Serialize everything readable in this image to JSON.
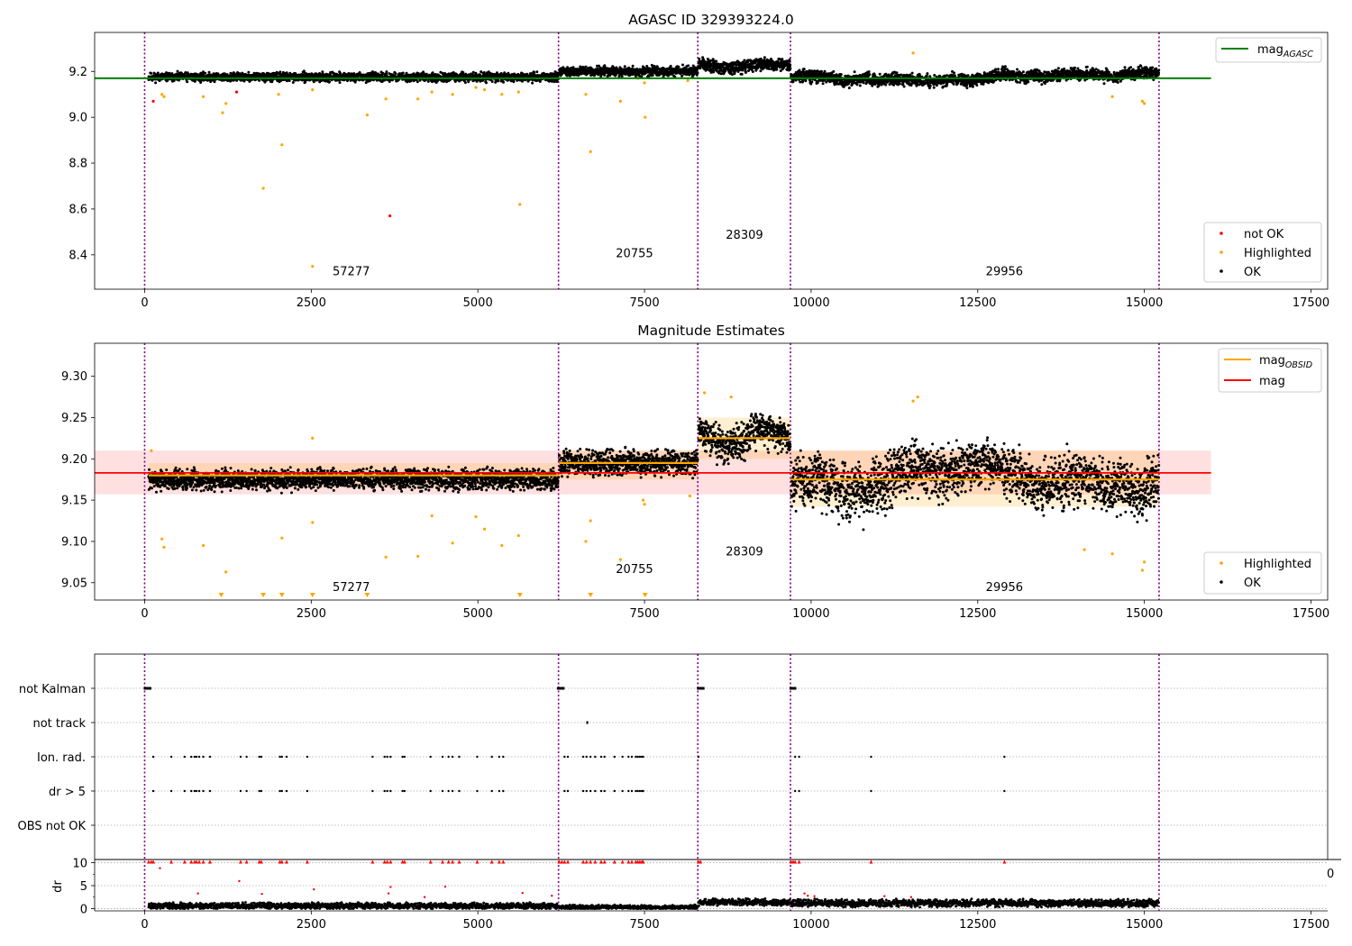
{
  "chart_data": [
    {
      "type": "scatter",
      "title": "AGASC ID 329393224.0",
      "xlim": [
        -750,
        17750
      ],
      "ylim": [
        8.25,
        9.37
      ],
      "xticks": [
        0,
        2500,
        5000,
        7500,
        10000,
        12500,
        15000,
        17500
      ],
      "yticks": [
        8.4,
        8.6,
        8.8,
        9.0,
        9.2
      ],
      "lines": [
        {
          "name": "mag_AGASC",
          "label_main": "mag",
          "label_sub": "AGASC",
          "color": "#008000",
          "y": 9.17,
          "x": [
            -750,
            16000
          ]
        }
      ],
      "obs_boundaries": [
        0,
        6210,
        8300,
        9690,
        15220
      ],
      "obsids": [
        {
          "label": "57277",
          "x": 3100,
          "y": 8.31
        },
        {
          "label": "20755",
          "x": 7350,
          "y": 8.39
        },
        {
          "label": "28309",
          "x": 9000,
          "y": 8.47
        },
        {
          "label": "29956",
          "x": 12900,
          "y": 8.31
        }
      ],
      "segments": [
        {
          "x0": 60,
          "x1": 6210,
          "base": 9.175,
          "spread": 0.018
        },
        {
          "x0": 6220,
          "x1": 8300,
          "base": 9.2,
          "spread": 0.02
        },
        {
          "x0": 8310,
          "x1": 9690,
          "base": 9.225,
          "spread": 0.025
        },
        {
          "x0": 9700,
          "x1": 15220,
          "base": 9.175,
          "spread": 0.025
        }
      ],
      "highlighted_points": [
        [
          260,
          9.1
        ],
        [
          290,
          9.09
        ],
        [
          880,
          9.09
        ],
        [
          1170,
          9.02
        ],
        [
          1220,
          9.06
        ],
        [
          1780,
          8.69
        ],
        [
          2060,
          8.88
        ],
        [
          2010,
          9.1
        ],
        [
          2520,
          9.12
        ],
        [
          2520,
          8.35
        ],
        [
          3340,
          9.01
        ],
        [
          3620,
          9.08
        ],
        [
          4100,
          9.08
        ],
        [
          4310,
          9.11
        ],
        [
          4620,
          9.1
        ],
        [
          4970,
          9.13
        ],
        [
          5100,
          9.12
        ],
        [
          5360,
          9.1
        ],
        [
          5610,
          9.11
        ],
        [
          5630,
          8.62
        ],
        [
          6690,
          8.85
        ],
        [
          6620,
          9.1
        ],
        [
          7140,
          9.07
        ],
        [
          7510,
          9.0
        ],
        [
          7400,
          9.17
        ],
        [
          7500,
          9.15
        ],
        [
          8150,
          9.16
        ],
        [
          14970,
          9.07
        ],
        [
          15000,
          9.06
        ],
        [
          14520,
          9.09
        ],
        [
          11530,
          9.28
        ]
      ],
      "not_ok_points": [
        [
          130,
          9.07
        ],
        [
          1380,
          9.11
        ],
        [
          3680,
          8.57
        ]
      ],
      "legend_points": [
        {
          "label": "not OK",
          "color": "#ff0000"
        },
        {
          "label": "Highlighted",
          "color": "#ffa500"
        },
        {
          "label": "OK",
          "color": "#000000"
        }
      ]
    },
    {
      "type": "scatter",
      "title": "Magnitude Estimates",
      "xlim": [
        -750,
        17750
      ],
      "ylim": [
        9.029,
        9.34
      ],
      "xticks": [
        0,
        2500,
        5000,
        7500,
        10000,
        12500,
        15000,
        17500
      ],
      "yticks": [
        9.05,
        9.1,
        9.15,
        9.2,
        9.25,
        9.3
      ],
      "mag": {
        "value": 9.183,
        "band": [
          9.157,
          9.21
        ],
        "x": [
          -750,
          16000
        ],
        "color": "#ff0000"
      },
      "mag_obsid": [
        {
          "x0": 60,
          "x1": 6210,
          "value": 9.18,
          "band": [
            9.165,
            9.195
          ]
        },
        {
          "x0": 6220,
          "x1": 8300,
          "value": 9.195,
          "band": [
            9.175,
            9.21
          ]
        },
        {
          "x0": 8310,
          "x1": 9690,
          "value": 9.225,
          "band": [
            9.2,
            9.25
          ]
        },
        {
          "x0": 9700,
          "x1": 15220,
          "value": 9.175,
          "band": [
            9.142,
            9.21
          ]
        }
      ],
      "obs_boundaries": [
        0,
        6210,
        8300,
        9690,
        15220
      ],
      "obsids": [
        {
          "label": "57277",
          "x": 3100,
          "y": 9.04
        },
        {
          "label": "20755",
          "x": 7350,
          "y": 9.062
        },
        {
          "label": "28309",
          "x": 9000,
          "y": 9.083
        },
        {
          "label": "29956",
          "x": 12900,
          "y": 9.04
        }
      ],
      "segments": [
        {
          "x0": 60,
          "x1": 6210,
          "base": 9.175,
          "spread": 0.012
        },
        {
          "x0": 6220,
          "x1": 8300,
          "base": 9.195,
          "spread": 0.015
        },
        {
          "x0": 8310,
          "x1": 9690,
          "base": 9.225,
          "spread": 0.02
        },
        {
          "x0": 9700,
          "x1": 15220,
          "base": 9.175,
          "spread": 0.03
        }
      ],
      "highlighted_points": [
        [
          260,
          9.103
        ],
        [
          290,
          9.093
        ],
        [
          880,
          9.095
        ],
        [
          1220,
          9.063
        ],
        [
          2060,
          9.104
        ],
        [
          2520,
          9.123
        ],
        [
          3620,
          9.081
        ],
        [
          4100,
          9.082
        ],
        [
          4310,
          9.131
        ],
        [
          4620,
          9.098
        ],
        [
          4970,
          9.13
        ],
        [
          5100,
          9.115
        ],
        [
          5360,
          9.095
        ],
        [
          5610,
          9.107
        ],
        [
          6620,
          9.1
        ],
        [
          6690,
          9.125
        ],
        [
          7140,
          9.078
        ],
        [
          7480,
          9.15
        ],
        [
          7500,
          9.145
        ],
        [
          8180,
          9.155
        ],
        [
          14970,
          9.065
        ],
        [
          15000,
          9.075
        ],
        [
          14520,
          9.085
        ],
        [
          14100,
          9.09
        ],
        [
          11530,
          9.27
        ],
        [
          11600,
          9.275
        ],
        [
          8400,
          9.28
        ],
        [
          8800,
          9.275
        ],
        [
          100,
          9.21
        ],
        [
          2520,
          9.225
        ]
      ],
      "clipped_points": [
        1150,
        1780,
        2060,
        2520,
        3340,
        5630,
        6690,
        7510
      ],
      "legend_lines": [
        {
          "label_main": "mag",
          "label_sub": "OBSID",
          "color": "#ffa500"
        },
        {
          "label_main": "mag",
          "label_sub": "",
          "color": "#ff0000"
        }
      ],
      "legend_points": [
        {
          "label": "Highlighted",
          "color": "#ffa500"
        },
        {
          "label": "OK",
          "color": "#000000"
        }
      ]
    },
    {
      "type": "scatter",
      "title": "",
      "xlim": [
        -750,
        17750
      ],
      "xticks": [
        0,
        2500,
        5000,
        7500,
        10000,
        12500,
        15000,
        17500
      ],
      "flag_rows": [
        "not Kalman",
        "not track",
        "Ion. rad.",
        "dr > 5",
        "OBS not OK"
      ],
      "obs_boundaries": [
        0,
        6210,
        8300,
        9690,
        15220
      ],
      "flags": {
        "not Kalman": [
          [
            0,
            90
          ],
          [
            6200,
            6290
          ],
          [
            8300,
            8390
          ],
          [
            9690,
            9770
          ]
        ],
        "not track": [
          [
            6640,
            6660
          ]
        ],
        "Ion. rad.": [
          130,
          400,
          600,
          700,
          750,
          780,
          820,
          880,
          980,
          1440,
          1530,
          1720,
          1750,
          2030,
          2060,
          2130,
          2440,
          3420,
          3600,
          3640,
          3690,
          3870,
          3900,
          4290,
          4470,
          4560,
          4620,
          4720,
          4990,
          5210,
          5320,
          5380,
          6300,
          6350,
          6580,
          6630,
          6690,
          6760,
          6850,
          6900,
          7050,
          7170,
          7260,
          7310,
          7370,
          7400,
          7430,
          7460,
          7480,
          8310,
          9760,
          9820,
          10900,
          12900
        ],
        "dr > 5": [
          130,
          400,
          600,
          700,
          750,
          780,
          820,
          880,
          980,
          1440,
          1530,
          1720,
          1750,
          2030,
          2060,
          2130,
          2440,
          3420,
          3600,
          3640,
          3690,
          3870,
          3900,
          4290,
          4470,
          4560,
          4620,
          4720,
          4990,
          5210,
          5320,
          5380,
          6300,
          6350,
          6580,
          6630,
          6690,
          6760,
          6850,
          6900,
          7050,
          7170,
          7260,
          7310,
          7370,
          7400,
          7430,
          7460,
          7480,
          9760,
          9820,
          10900,
          12900
        ]
      },
      "dr": {
        "ylabel": "dr",
        "ylim": [
          -0.5,
          10.5
        ],
        "yticks": [
          0,
          5,
          10
        ],
        "clipped_x": [
          60,
          100,
          130,
          400,
          600,
          700,
          750,
          780,
          820,
          880,
          980,
          1440,
          1530,
          1720,
          1750,
          2030,
          2060,
          2130,
          2440,
          3420,
          3600,
          3640,
          3690,
          3870,
          3900,
          4290,
          4470,
          4560,
          4620,
          4720,
          4990,
          5210,
          5320,
          5380,
          6220,
          6260,
          6300,
          6350,
          6580,
          6630,
          6690,
          6760,
          6850,
          6900,
          7050,
          7170,
          7260,
          7310,
          7370,
          7400,
          7430,
          7460,
          7480,
          8310,
          8340,
          9700,
          9730,
          9760,
          9820,
          10900,
          12900
        ],
        "outliers": [
          [
            230,
            8.8
          ],
          [
            800,
            3.3
          ],
          [
            1420,
            6
          ],
          [
            1760,
            3.2
          ],
          [
            2540,
            4.2
          ],
          [
            3660,
            3.3
          ],
          [
            3690,
            4.7
          ],
          [
            4200,
            2.5
          ],
          [
            4510,
            4.8
          ],
          [
            5670,
            3.4
          ],
          [
            6110,
            2.8
          ],
          [
            9900,
            3.3
          ],
          [
            9950,
            2.8
          ],
          [
            10050,
            2.7
          ],
          [
            11100,
            2.7
          ],
          [
            11500,
            2.5
          ]
        ],
        "segments": [
          {
            "x0": 60,
            "x1": 6210,
            "base": 0.6,
            "spread": 0.5
          },
          {
            "x0": 6220,
            "x1": 8300,
            "base": 0.3,
            "spread": 0.35
          },
          {
            "x0": 8310,
            "x1": 9690,
            "base": 1.4,
            "spread": 0.55
          },
          {
            "x0": 9700,
            "x1": 15220,
            "base": 1.2,
            "spread": 0.6
          }
        ]
      },
      "stray_label": "0"
    }
  ]
}
